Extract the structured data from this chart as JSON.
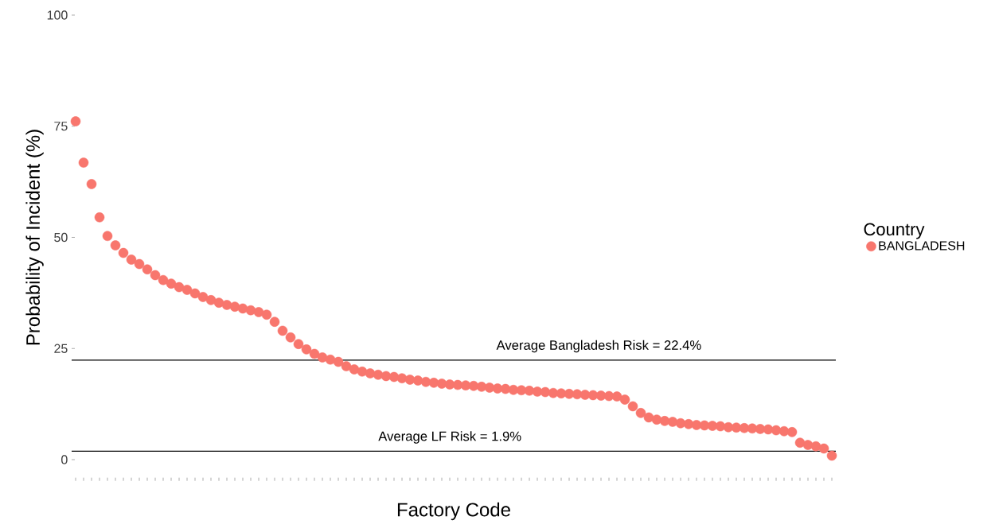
{
  "chart_data": {
    "type": "scatter",
    "xlabel": "Factory Code",
    "ylabel": "Probability of Incident (%)",
    "legend_title": "Country",
    "categories": [
      null,
      null,
      null,
      null,
      null,
      null,
      null,
      null,
      null,
      null,
      null,
      null,
      null,
      null,
      null,
      null,
      null,
      null,
      null,
      null,
      null,
      null,
      null,
      null,
      null,
      null,
      null,
      null,
      null,
      null,
      null,
      null,
      null,
      null,
      null,
      null,
      null,
      null,
      null,
      null,
      null,
      null,
      null,
      null,
      null,
      null,
      null,
      null,
      null,
      null,
      null,
      null,
      null,
      null,
      null,
      null,
      null,
      null,
      null,
      null,
      null,
      null,
      null,
      null,
      null,
      null,
      null,
      null,
      null,
      null,
      null,
      null,
      null,
      null,
      null,
      null,
      null,
      null,
      null,
      null,
      null,
      null,
      null,
      null,
      null,
      null,
      null,
      null,
      null,
      null,
      null,
      null,
      null,
      null,
      null,
      null
    ],
    "series": [
      {
        "name": "BANGLADESH",
        "color": "#f8766d",
        "values": [
          76.1,
          66.8,
          62.0,
          54.5,
          50.3,
          48.2,
          46.5,
          45.0,
          44.0,
          42.8,
          41.5,
          40.4,
          39.6,
          38.8,
          38.2,
          37.4,
          36.6,
          35.9,
          35.3,
          34.8,
          34.4,
          34.0,
          33.6,
          33.2,
          32.6,
          31.0,
          29.0,
          27.5,
          26.0,
          24.8,
          23.8,
          23.0,
          22.5,
          22.0,
          21.0,
          20.3,
          19.8,
          19.4,
          19.1,
          18.8,
          18.6,
          18.3,
          18.0,
          17.8,
          17.5,
          17.3,
          17.1,
          16.9,
          16.8,
          16.7,
          16.6,
          16.4,
          16.2,
          16.0,
          15.9,
          15.7,
          15.6,
          15.5,
          15.3,
          15.2,
          15.0,
          14.9,
          14.8,
          14.7,
          14.6,
          14.5,
          14.4,
          14.3,
          14.2,
          13.5,
          12.0,
          10.5,
          9.5,
          9.0,
          8.7,
          8.5,
          8.2,
          8.0,
          7.8,
          7.7,
          7.6,
          7.5,
          7.3,
          7.2,
          7.1,
          7.0,
          6.9,
          6.8,
          6.6,
          6.4,
          6.2,
          3.8,
          3.3,
          3.0,
          2.5,
          0.9
        ]
      }
    ],
    "ylim": [
      0,
      100
    ],
    "yticks": [
      0,
      25,
      50,
      75,
      100
    ],
    "ref_lines": [
      {
        "axis": "y",
        "value": 22.4,
        "label": "Average Bangladesh Risk = 22.4%",
        "color": "#000000"
      },
      {
        "axis": "y",
        "value": 1.9,
        "label": "Average LF Risk = 1.9%",
        "color": "#000000"
      }
    ],
    "legend": "right",
    "marker": "circle"
  }
}
